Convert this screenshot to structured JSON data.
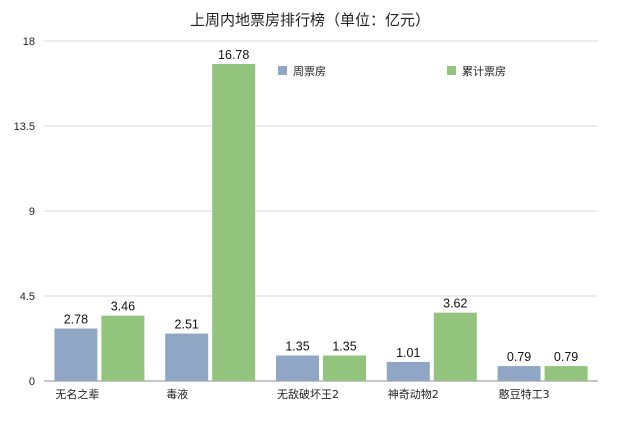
{
  "chart_data": {
    "type": "bar",
    "title": "上周内地票房排行榜（单位：亿元）",
    "categories": [
      "无名之辈",
      "毒液",
      "无敌破坏王2",
      "神奇动物2",
      "憨豆特工3"
    ],
    "series": [
      {
        "name": "周票房",
        "values": [
          2.78,
          2.51,
          1.35,
          1.01,
          0.79
        ],
        "labels": [
          "2.78",
          "2.51",
          "1.35",
          "1.01",
          "0.79"
        ],
        "color": "#8fa7c4"
      },
      {
        "name": "累计票房",
        "values": [
          3.46,
          16.78,
          1.35,
          3.62,
          0.79
        ],
        "labels": [
          "3.46",
          "16.78",
          "1.35",
          "3.62",
          "0.79"
        ],
        "color": "#93c47d"
      }
    ],
    "ylim": [
      0,
      18
    ],
    "yticks": [
      0,
      4.5,
      9,
      13.5,
      18
    ],
    "ytick_labels": [
      "0",
      "4.5",
      "9",
      "13.5",
      "18"
    ],
    "grid": true,
    "legend_position": "top"
  }
}
